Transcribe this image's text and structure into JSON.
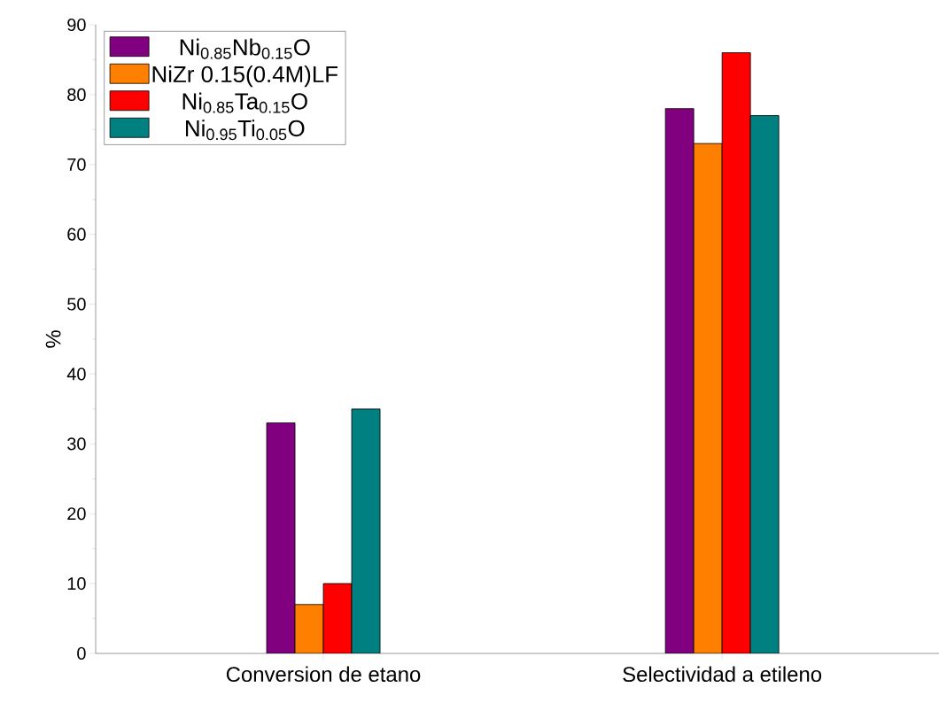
{
  "chart_data": {
    "type": "bar",
    "ylabel": "%",
    "categories": [
      "Conversion de etano",
      "Selectividad a etileno"
    ],
    "series": [
      {
        "name": "Ni$_{0.85}$Nb$_{0.15}$O",
        "color": "#800080",
        "values": [
          33,
          78
        ]
      },
      {
        "name": "NiZr 0.15(0.4M)LF",
        "color": "#ff8000",
        "values": [
          7,
          73
        ]
      },
      {
        "name": "Ni$_{0.85}$Ta$_{0.15}$O",
        "color": "#ff0000",
        "values": [
          10,
          86
        ]
      },
      {
        "name": "Ni$_{0.95}$Ti$_{0.05}$O",
        "color": "#008080",
        "values": [
          35,
          77
        ]
      }
    ],
    "ylim": [
      0,
      90
    ],
    "yticks": [
      0,
      10,
      20,
      30,
      40,
      50,
      60,
      70,
      80,
      90
    ],
    "legend": "top left",
    "grid": false
  }
}
